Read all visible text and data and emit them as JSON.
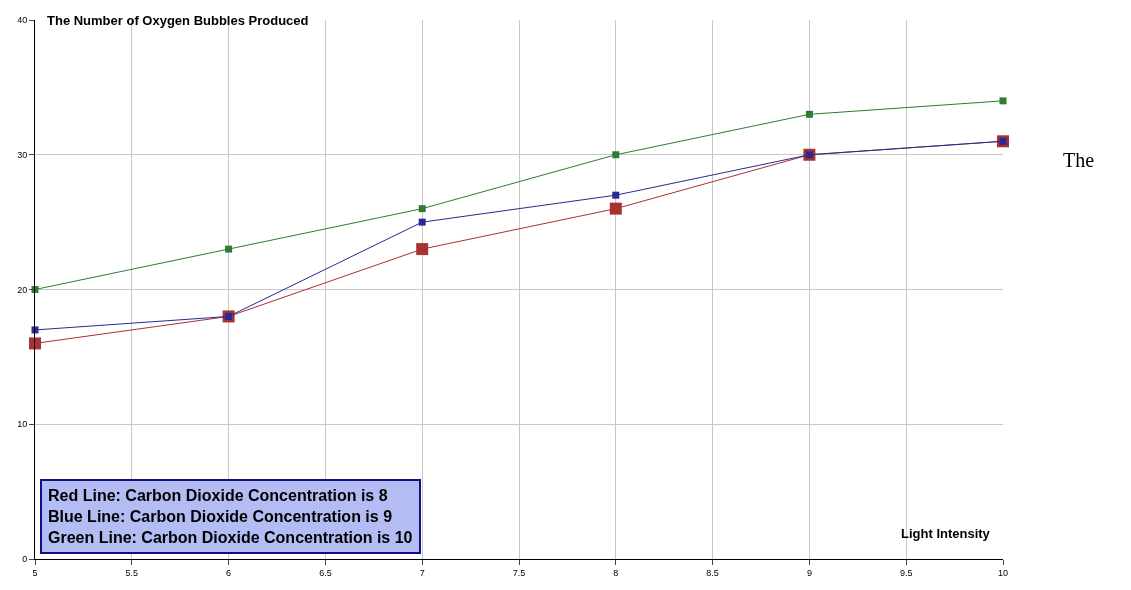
{
  "chart_data": {
    "type": "line",
    "ylabel": "The Number of Oxygen Bubbles Produced",
    "xlabel": "Light Intensity",
    "x": [
      5,
      6,
      7,
      8,
      9,
      10
    ],
    "series": [
      {
        "color": "#a83232",
        "values": [
          16,
          18,
          23,
          26,
          30,
          31
        ]
      },
      {
        "color": "#2a2a96",
        "values": [
          17,
          18,
          25,
          27,
          30,
          31
        ]
      },
      {
        "color": "#2e7d32",
        "values": [
          20,
          23,
          26,
          30,
          33,
          34
        ]
      }
    ],
    "xlim": [
      5,
      10
    ],
    "xticks": [
      5,
      5.5,
      6,
      6.5,
      7,
      7.5,
      8,
      8.5,
      9,
      9.5,
      10
    ],
    "ylim": [
      0,
      40
    ],
    "yticks": [
      0,
      10,
      20,
      30,
      40
    ],
    "grid": true,
    "marker": "square",
    "line_style": "solid",
    "annotations": [
      "Red Line: Carbon Dioxide Concentration is 8\nBlue Line: Carbon Dioxide Concentration is 9\nGreen Line: Carbon Dioxide Concentration is 10",
      "The"
    ]
  }
}
